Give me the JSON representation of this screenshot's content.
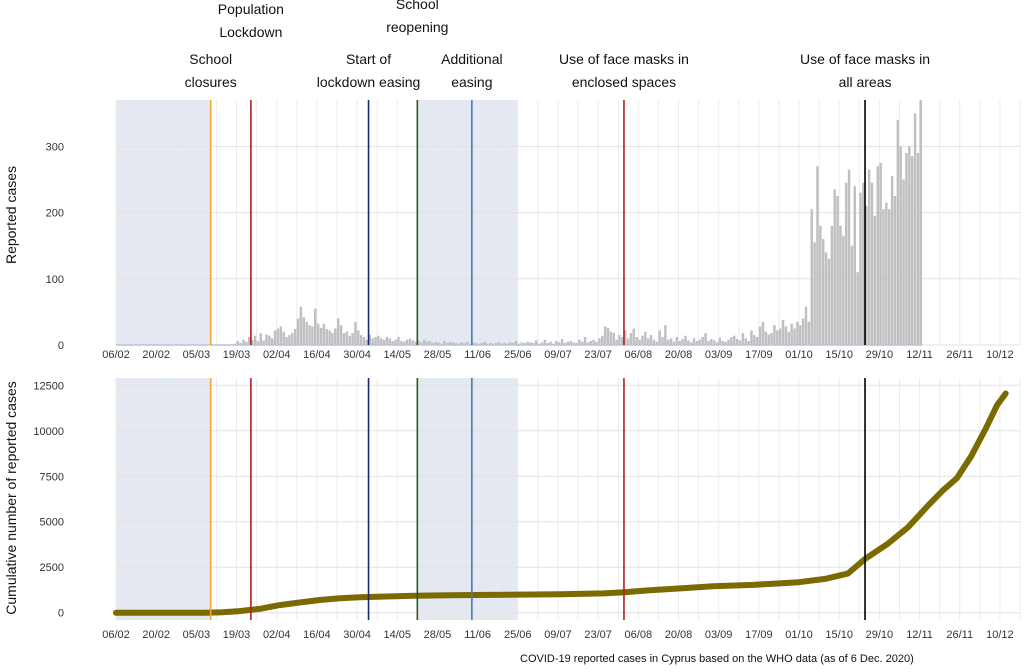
{
  "caption": "COVID-19  reported cases in Cyprus based on the WHO data (as of 6 Dec. 2020)",
  "chart_data": [
    {
      "type": "bar",
      "ylabel": "Reported cases",
      "x_ticks": [
        "06/02",
        "20/02",
        "05/03",
        "19/03",
        "02/04",
        "16/04",
        "30/04",
        "14/05",
        "28/05",
        "11/06",
        "25/06",
        "09/07",
        "23/07",
        "06/08",
        "20/08",
        "03/09",
        "17/09",
        "01/10",
        "15/10",
        "29/10",
        "12/11",
        "26/11",
        "10/12"
      ],
      "yticks": [
        0,
        100,
        200,
        300
      ],
      "ylim": [
        0,
        370
      ],
      "grid": true,
      "bar_color": "#c0c0c0",
      "values": [
        0,
        0,
        0,
        0,
        0,
        0,
        0,
        0,
        0,
        0,
        0,
        0,
        0,
        0,
        0,
        0,
        0,
        0,
        0,
        0,
        0,
        0,
        0,
        0,
        0,
        0,
        0,
        0,
        0,
        0,
        0,
        0,
        0,
        0,
        0,
        0,
        0,
        0,
        0,
        0,
        0,
        2,
        6,
        3,
        8,
        5,
        12,
        8,
        14,
        6,
        18,
        7,
        16,
        14,
        10,
        22,
        25,
        28,
        20,
        12,
        15,
        18,
        24,
        40,
        58,
        42,
        35,
        30,
        28,
        55,
        32,
        26,
        32,
        24,
        22,
        18,
        25,
        40,
        30,
        18,
        20,
        14,
        18,
        35,
        22,
        15,
        12,
        8,
        16,
        10,
        12,
        14,
        10,
        8,
        12,
        10,
        6,
        8,
        12,
        6,
        5,
        8,
        10,
        7,
        5,
        6,
        4,
        8,
        5,
        6,
        3,
        5,
        4,
        2,
        6,
        3,
        5,
        4,
        3,
        2,
        4,
        3,
        5,
        2,
        4,
        3,
        2,
        3,
        5,
        2,
        3,
        2,
        3,
        4,
        2,
        3,
        2,
        4,
        3,
        6,
        2,
        4,
        3,
        5,
        4,
        3,
        7,
        2,
        4,
        8,
        3,
        5,
        2,
        6,
        4,
        9,
        3,
        5,
        6,
        4,
        3,
        8,
        5,
        12,
        4,
        6,
        8,
        5,
        10,
        14,
        28,
        26,
        20,
        18,
        8,
        15,
        12,
        22,
        10,
        18,
        25,
        12,
        8,
        14,
        20,
        10,
        15,
        8,
        5,
        22,
        12,
        30,
        8,
        10,
        5,
        12,
        6,
        9,
        14,
        7,
        4,
        10,
        6,
        8,
        12,
        18,
        6,
        9,
        7,
        4,
        11,
        6,
        5,
        8,
        12,
        14,
        9,
        7,
        18,
        10,
        6,
        22,
        15,
        12,
        28,
        35,
        20,
        16,
        18,
        30,
        22,
        25,
        38,
        28,
        20,
        32,
        25,
        35,
        30,
        40,
        58,
        35,
        205,
        155,
        270,
        180,
        160,
        140,
        130,
        180,
        235,
        225,
        180,
        165,
        245,
        265,
        150,
        240,
        110,
        230,
        245,
        210,
        265,
        245,
        195,
        270,
        275,
        205,
        215,
        205,
        255,
        225,
        340,
        300,
        250,
        290,
        300,
        285,
        350,
        290,
        370
      ],
      "annotations": [
        {
          "date": "2020-03-10",
          "label_lines": [
            "School",
            "closures"
          ],
          "color": "#f0a830"
        },
        {
          "date": "2020-03-24",
          "label_lines": [
            "Population",
            "Lockdown"
          ],
          "color": "#b02020"
        },
        {
          "date": "2020-05-04",
          "label_lines": [
            "Start of",
            "lockdown easing"
          ],
          "color": "#1a2a70"
        },
        {
          "date": "2020-05-21",
          "label_lines": [
            "School",
            "reopening"
          ],
          "color": "#2a5a1a"
        },
        {
          "date": "2020-06-09",
          "label_lines": [
            "Additional",
            "easing"
          ],
          "color": "#4a78b8"
        },
        {
          "date": "2020-08-01",
          "label_lines": [
            "Use of face masks in",
            "enclosed spaces"
          ],
          "color": "#b02020"
        },
        {
          "date": "2020-10-24",
          "label_lines": [
            "Use of face masks in",
            "all areas"
          ],
          "color": "#000000"
        }
      ],
      "shaded_periods": [
        [
          "2020-02-06",
          "2020-03-10"
        ],
        [
          "2020-05-21",
          "2020-06-25"
        ]
      ]
    },
    {
      "type": "line",
      "ylabel": "Cumulative number of reported cases",
      "x_ticks": [
        "06/02",
        "20/02",
        "05/03",
        "19/03",
        "02/04",
        "16/04",
        "30/04",
        "14/05",
        "28/05",
        "11/06",
        "25/06",
        "09/07",
        "23/07",
        "06/08",
        "20/08",
        "03/09",
        "17/09",
        "01/10",
        "15/10",
        "29/10",
        "12/11",
        "26/11",
        "10/12"
      ],
      "yticks": [
        0,
        2500,
        5000,
        7500,
        10000,
        12500
      ],
      "ylim": [
        -400,
        12900
      ],
      "grid": true,
      "line_color": "#7a6a00",
      "points": [
        [
          "2020-02-06",
          0
        ],
        [
          "2020-03-08",
          0
        ],
        [
          "2020-03-14",
          30
        ],
        [
          "2020-03-20",
          90
        ],
        [
          "2020-03-27",
          210
        ],
        [
          "2020-04-03",
          420
        ],
        [
          "2020-04-10",
          560
        ],
        [
          "2020-04-17",
          700
        ],
        [
          "2020-04-24",
          790
        ],
        [
          "2020-05-01",
          850
        ],
        [
          "2020-05-10",
          890
        ],
        [
          "2020-05-20",
          930
        ],
        [
          "2020-06-01",
          955
        ],
        [
          "2020-06-15",
          980
        ],
        [
          "2020-06-25",
          995
        ],
        [
          "2020-07-10",
          1020
        ],
        [
          "2020-07-25",
          1060
        ],
        [
          "2020-08-01",
          1130
        ],
        [
          "2020-08-10",
          1230
        ],
        [
          "2020-08-20",
          1330
        ],
        [
          "2020-09-01",
          1450
        ],
        [
          "2020-09-15",
          1530
        ],
        [
          "2020-10-01",
          1680
        ],
        [
          "2020-10-10",
          1860
        ],
        [
          "2020-10-18",
          2150
        ],
        [
          "2020-10-24",
          2950
        ],
        [
          "2020-11-01",
          3800
        ],
        [
          "2020-11-08",
          4700
        ],
        [
          "2020-11-15",
          5900
        ],
        [
          "2020-11-20",
          6700
        ],
        [
          "2020-11-25",
          7400
        ],
        [
          "2020-11-30",
          8600
        ],
        [
          "2020-12-05",
          10100
        ],
        [
          "2020-12-09",
          11400
        ],
        [
          "2020-12-12",
          12050
        ]
      ],
      "annotations": [
        {
          "date": "2020-03-10",
          "color": "#f0a830"
        },
        {
          "date": "2020-03-24",
          "color": "#b02020"
        },
        {
          "date": "2020-05-04",
          "color": "#1a2a70"
        },
        {
          "date": "2020-05-21",
          "color": "#2a5a1a"
        },
        {
          "date": "2020-06-09",
          "color": "#4a78b8"
        },
        {
          "date": "2020-08-01",
          "color": "#b02020"
        },
        {
          "date": "2020-10-24",
          "color": "#000000"
        }
      ],
      "shaded_periods": [
        [
          "2020-02-06",
          "2020-03-10"
        ],
        [
          "2020-05-21",
          "2020-06-25"
        ]
      ]
    }
  ]
}
